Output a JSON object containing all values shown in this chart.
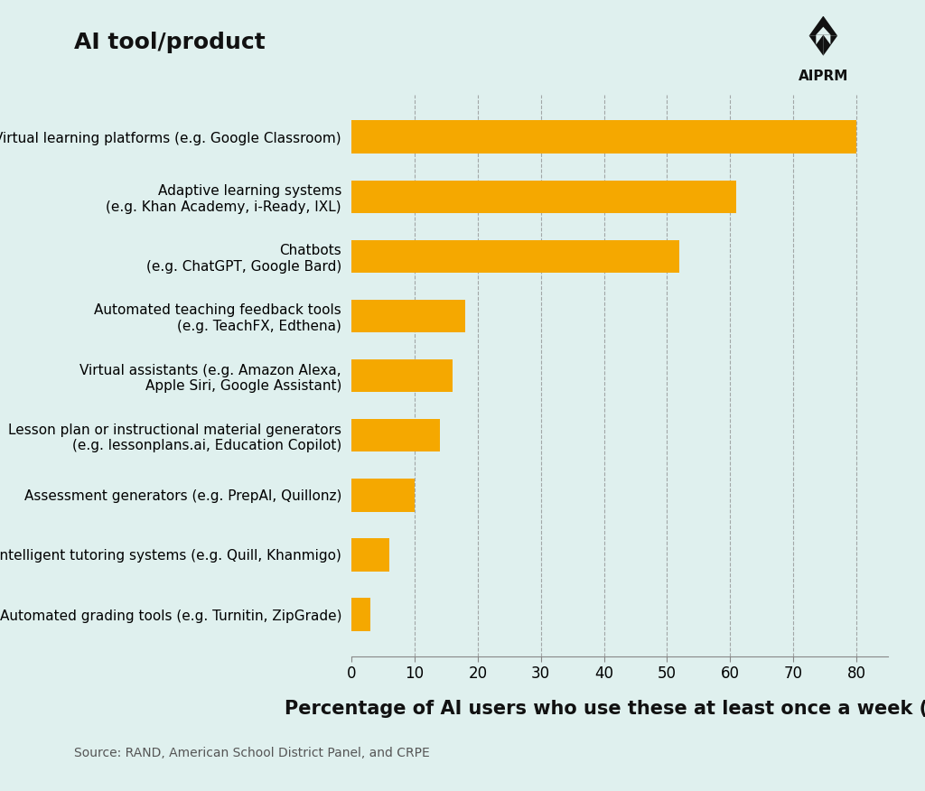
{
  "title": "AI tool/product",
  "xlabel": "Percentage of AI users who use these at least once a week (%)",
  "source": "Source: RAND, American School District Panel, and CRPE",
  "background_color": "#dff0ee",
  "bar_color": "#F5A800",
  "categories": [
    "Automated grading tools (e.g. Turnitin, ZipGrade)",
    "Intelligent tutoring systems (e.g. Quill, Khanmigo)",
    "Assessment generators (e.g. PrepAI, Quillonz)",
    "Lesson plan or instructional material generators\n(e.g. lessonplans.ai, Education Copilot)",
    "Virtual assistants (e.g. Amazon Alexa,\nApple Siri, Google Assistant)",
    "Automated teaching feedback tools\n(e.g. TeachFX, Edthena)",
    "Chatbots\n(e.g. ChatGPT, Google Bard)",
    "Adaptive learning systems\n(e.g. Khan Academy, i-Ready, IXL)",
    "Virtual learning platforms (e.g. Google Classroom)"
  ],
  "values": [
    3,
    6,
    10,
    14,
    16,
    18,
    52,
    61,
    80
  ],
  "xlim": [
    0,
    85
  ],
  "xticks": [
    0,
    10,
    20,
    30,
    40,
    50,
    60,
    70,
    80
  ],
  "grid_color": "#888888",
  "title_fontsize": 18,
  "xlabel_fontsize": 15,
  "tick_fontsize": 12,
  "label_fontsize": 11,
  "source_fontsize": 10
}
